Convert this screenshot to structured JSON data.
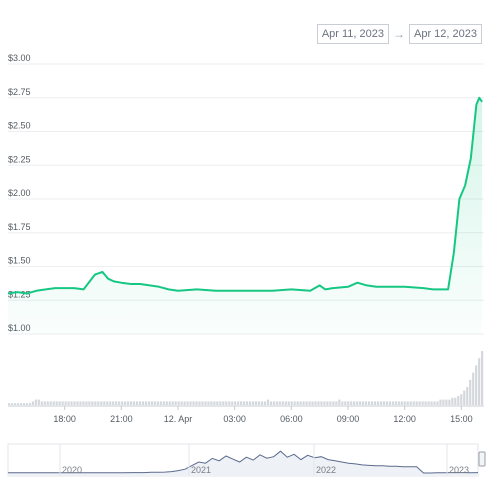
{
  "date_range": {
    "from": "Apr 11, 2023",
    "to": "Apr 12, 2023",
    "arrow": "→"
  },
  "colors": {
    "price_line": "#16c784",
    "volume_bar": "#d4d7dc",
    "navigator_line": "#5a6b8c",
    "grid": "#eceef1"
  },
  "chart_data": {
    "type": "line",
    "title": "",
    "xlabel": "",
    "ylabel": "",
    "ylim": [
      1.0,
      3.0
    ],
    "y_ticks": [
      "$3.00",
      "$2.75",
      "$2.50",
      "$2.25",
      "$2.00",
      "$1.75",
      "$1.50",
      "$1.25",
      "$1.00"
    ],
    "y_tick_values": [
      3.0,
      2.75,
      2.5,
      2.25,
      2.0,
      1.75,
      1.5,
      1.25,
      1.0
    ],
    "x_ticks": [
      "18:00",
      "21:00",
      "12. Apr",
      "03:00",
      "06:00",
      "09:00",
      "12:00",
      "15:00"
    ],
    "x_tick_values": [
      3.0,
      6.0,
      9.0,
      12.0,
      15.0,
      18.0,
      21.0,
      24.0
    ],
    "xlim": [
      0,
      25.2
    ],
    "x_unit": "hours from Apr 11, 2023 15:00",
    "series": [
      {
        "x": [
          0,
          0.5,
          1.0,
          1.5,
          2.0,
          2.5,
          3.0,
          3.5,
          4.0,
          4.6,
          5.0,
          5.3,
          5.6,
          6.0,
          6.5,
          7.0,
          7.5,
          8.0,
          8.5,
          9.0,
          10.0,
          11.0,
          12.0,
          13.0,
          14.0,
          15.0,
          16.0,
          16.5,
          16.8,
          17.2,
          18.0,
          18.5,
          19.0,
          19.5,
          20.0,
          21.0,
          22.0,
          22.5,
          23.0,
          23.3,
          23.6,
          23.9,
          24.2,
          24.5,
          24.8,
          24.95,
          25.1
        ],
        "values": [
          1.3,
          1.31,
          1.3,
          1.32,
          1.33,
          1.34,
          1.34,
          1.34,
          1.33,
          1.44,
          1.46,
          1.41,
          1.39,
          1.38,
          1.37,
          1.37,
          1.36,
          1.35,
          1.33,
          1.32,
          1.33,
          1.32,
          1.32,
          1.32,
          1.32,
          1.33,
          1.32,
          1.36,
          1.33,
          1.34,
          1.35,
          1.38,
          1.36,
          1.35,
          1.35,
          1.35,
          1.34,
          1.33,
          1.33,
          1.33,
          1.6,
          2.0,
          2.1,
          2.3,
          2.7,
          2.75,
          2.72
        ]
      }
    ],
    "volume": [
      1,
      1,
      1,
      1,
      1,
      1,
      1,
      1,
      2,
      3,
      3,
      2,
      2,
      2,
      2,
      2,
      2,
      2,
      2,
      2,
      2,
      2,
      2,
      2,
      2,
      2,
      2,
      2,
      2,
      2,
      2,
      2,
      2,
      2,
      2,
      2,
      2,
      2,
      2,
      2,
      2,
      2,
      2,
      2,
      2,
      2,
      2,
      2,
      2,
      2,
      2,
      2,
      2,
      2,
      2,
      2,
      2,
      2,
      2,
      2,
      2,
      2,
      2,
      2,
      2,
      2,
      2,
      2,
      2,
      2,
      2,
      2,
      2,
      2,
      2,
      2,
      2,
      2,
      2,
      2,
      2,
      2,
      2,
      2,
      2,
      2,
      2,
      3,
      2,
      2,
      2,
      2,
      2,
      2,
      2,
      2,
      2,
      2,
      2,
      2,
      2,
      2,
      2,
      2,
      2,
      2,
      2,
      2,
      2,
      2,
      2,
      3,
      2,
      2,
      2,
      2,
      2,
      2,
      2,
      2,
      2,
      2,
      2,
      2,
      2,
      2,
      2,
      2,
      2,
      2,
      2,
      2,
      2,
      2,
      2,
      2,
      2,
      2,
      2,
      2,
      2,
      2,
      2,
      2,
      2,
      3,
      3,
      3,
      3,
      4,
      4,
      5,
      6,
      8,
      10,
      14,
      18,
      22,
      26,
      30
    ],
    "navigator": {
      "labels": [
        "2020",
        "2021",
        "2022",
        "2023"
      ],
      "values": [
        0.05,
        0.05,
        0.05,
        0.05,
        0.05,
        0.05,
        0.05,
        0.05,
        0.05,
        0.05,
        0.05,
        0.05,
        0.05,
        0.05,
        0.05,
        0.05,
        0.05,
        0.05,
        0.06,
        0.06,
        0.06,
        0.07,
        0.07,
        0.08,
        0.1,
        0.14,
        0.2,
        0.35,
        0.5,
        0.45,
        0.65,
        0.55,
        0.75,
        0.62,
        0.5,
        0.7,
        0.58,
        0.8,
        0.66,
        0.72,
        0.95,
        0.7,
        0.82,
        0.6,
        0.78,
        0.68,
        0.72,
        0.6,
        0.55,
        0.5,
        0.45,
        0.42,
        0.38,
        0.36,
        0.34,
        0.34,
        0.32,
        0.32,
        0.3,
        0.3,
        0.3,
        0.04,
        0.04,
        0.05,
        0.05,
        0.06,
        0.06,
        0.06,
        0.05,
        0.06
      ]
    }
  }
}
